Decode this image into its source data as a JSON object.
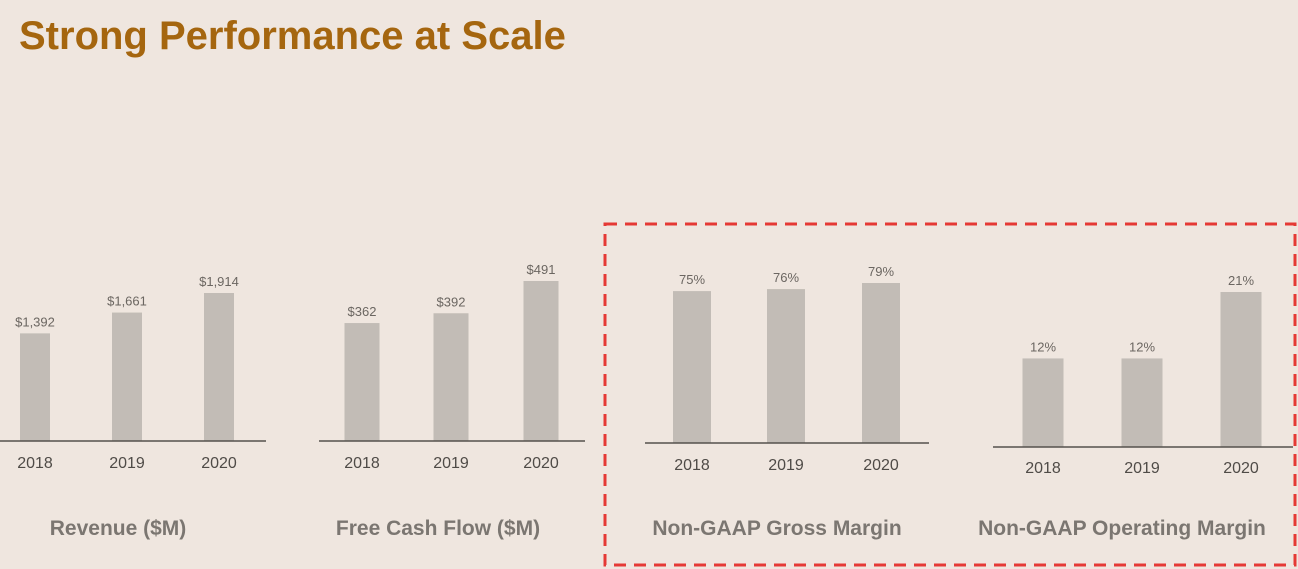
{
  "title": "Strong Performance at Scale",
  "colors": {
    "title": "#a5660f",
    "bar": "#c2bcb6",
    "axis": "#55514d",
    "highlight": "#e53935",
    "background": "#efe6df"
  },
  "chart_data": [
    {
      "type": "bar",
      "title": "Revenue ($M)",
      "categories": [
        "2018",
        "2019",
        "2020"
      ],
      "values": [
        1392,
        1661,
        1914
      ],
      "labels": [
        "$1,392",
        "$1,661",
        "$1,914"
      ],
      "ylim": [
        0,
        1914
      ]
    },
    {
      "type": "bar",
      "title": "Free Cash Flow ($M)",
      "categories": [
        "2018",
        "2019",
        "2020"
      ],
      "values": [
        362,
        392,
        491
      ],
      "labels": [
        "$362",
        "$392",
        "$491"
      ],
      "ylim": [
        0,
        491
      ]
    },
    {
      "type": "bar",
      "title": "Non-GAAP Gross Margin",
      "categories": [
        "2018",
        "2019",
        "2020"
      ],
      "values": [
        75,
        76,
        79
      ],
      "labels": [
        "75%",
        "76%",
        "79%"
      ],
      "ylim": [
        0,
        79
      ],
      "highlighted": true
    },
    {
      "type": "bar",
      "title": "Non-GAAP Operating Margin",
      "categories": [
        "2018",
        "2019",
        "2020"
      ],
      "values": [
        12,
        12,
        21
      ],
      "labels": [
        "12%",
        "12%",
        "21%"
      ],
      "ylim": [
        0,
        21
      ],
      "highlighted": true
    }
  ]
}
